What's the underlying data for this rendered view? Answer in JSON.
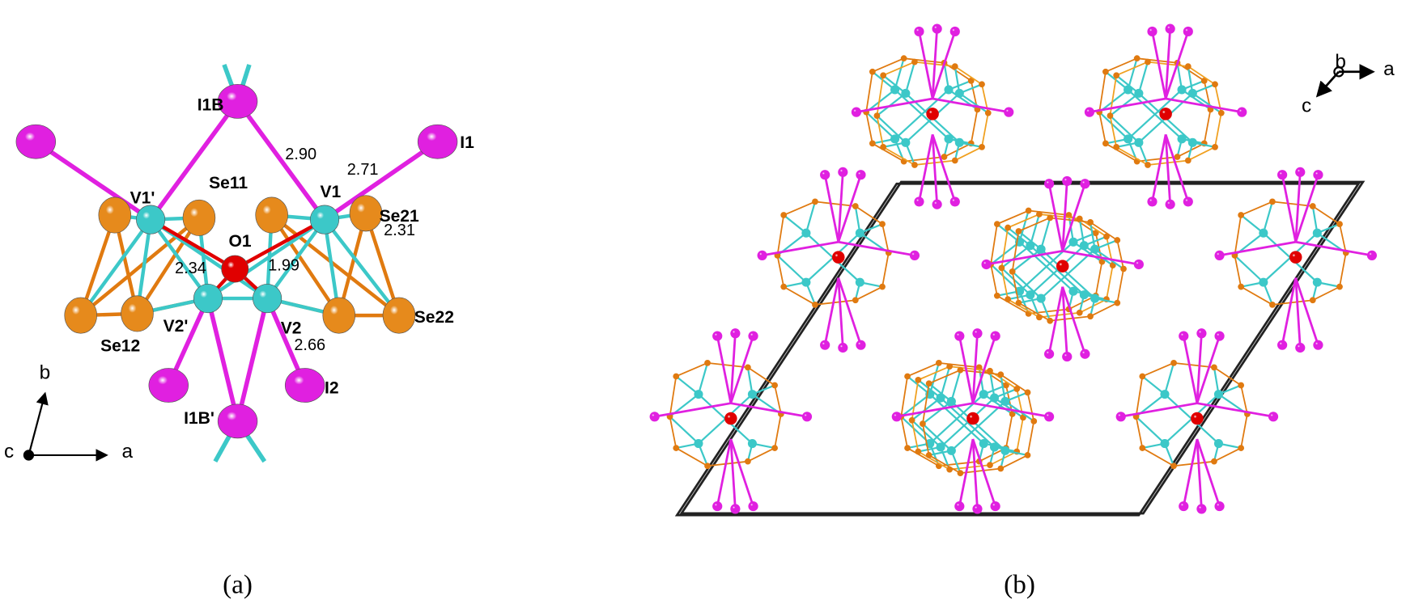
{
  "panels": [
    {
      "caption": "(a)",
      "atom_labels": [
        "I1B",
        "I1",
        "V1'",
        "Se11",
        "V1",
        "Se21",
        "O1",
        "Se12",
        "V2'",
        "V2",
        "Se22",
        "I2",
        "I1B'"
      ],
      "distances": [
        "2.90",
        "2.71",
        "2.31",
        "2.34",
        "1.99",
        "2.66"
      ],
      "axes": [
        "b",
        "c",
        "a"
      ]
    },
    {
      "caption": "(b)",
      "axes": [
        "b",
        "a",
        "c"
      ]
    }
  ]
}
